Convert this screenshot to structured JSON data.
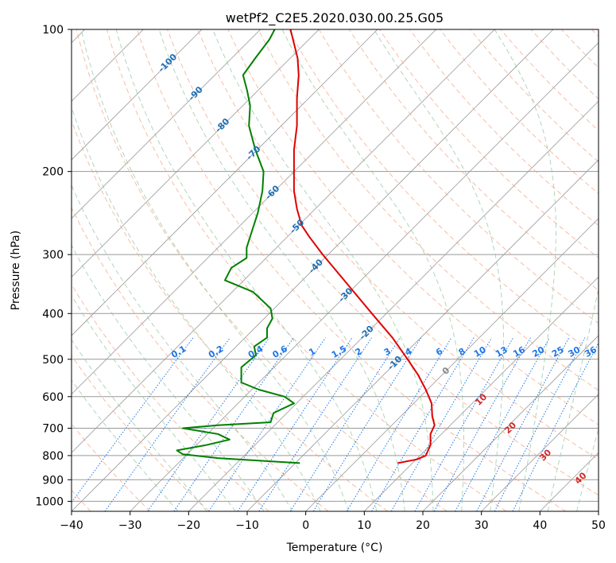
{
  "chart_data": {
    "type": "line",
    "title": "wetPf2_C2E5.2020.030.00.25.G05",
    "xlabel": "Temperature (°C)",
    "ylabel": "Pressure (hPa)",
    "xlim": [
      -40,
      50
    ],
    "ylim_hpa": [
      1050,
      100
    ],
    "y_scale": "log",
    "grid": true,
    "x_ticks": [
      -40,
      -30,
      -20,
      -10,
      0,
      10,
      20,
      30,
      40,
      50
    ],
    "y_ticks": [
      100,
      200,
      300,
      400,
      500,
      600,
      700,
      800,
      900,
      1000
    ],
    "colors": {
      "temperature": "#e00000",
      "dewpoint": "#008000",
      "isotherm": "#999999",
      "isobar": "#999999",
      "dry_adiabat": "#f4a582",
      "moist_adiabat": "#92c5a0",
      "mixing_ratio": "#1f77e8",
      "label_blue": "#1f6fb4",
      "label_red": "#d62728",
      "label_gray": "#888888"
    },
    "series": [
      {
        "name": "",
        "key": "temperature",
        "points": [
          {
            "p": 830,
            "t": 15.7
          },
          {
            "p": 815,
            "t": 19.0
          },
          {
            "p": 800,
            "t": 20.5
          },
          {
            "p": 760,
            "t": 21.3
          },
          {
            "p": 720,
            "t": 21.3
          },
          {
            "p": 690,
            "t": 22.0
          },
          {
            "p": 660,
            "t": 21.6
          },
          {
            "p": 620,
            "t": 21.5
          },
          {
            "p": 580,
            "t": 20.5
          },
          {
            "p": 540,
            "t": 19.2
          },
          {
            "p": 500,
            "t": 17.4
          },
          {
            "p": 450,
            "t": 14.8
          },
          {
            "p": 400,
            "t": 11.3
          },
          {
            "p": 350,
            "t": 7.4
          },
          {
            "p": 300,
            "t": 2.9
          },
          {
            "p": 275,
            "t": 0.6
          },
          {
            "p": 260,
            "t": -0.7
          },
          {
            "p": 240,
            "t": -1.5
          },
          {
            "p": 220,
            "t": -2.0
          },
          {
            "p": 200,
            "t": -2.0
          },
          {
            "p": 180,
            "t": -2.0
          },
          {
            "p": 160,
            "t": -1.5
          },
          {
            "p": 140,
            "t": -1.5
          },
          {
            "p": 125,
            "t": -1.2
          },
          {
            "p": 115,
            "t": -1.4
          },
          {
            "p": 100,
            "t": -2.6
          }
        ]
      },
      {
        "name": "",
        "key": "dewpoint",
        "points": [
          {
            "p": 830,
            "t": -1.0
          },
          {
            "p": 820,
            "t": -8.0
          },
          {
            "p": 810,
            "t": -15.0
          },
          {
            "p": 795,
            "t": -21.0
          },
          {
            "p": 780,
            "t": -22.0
          },
          {
            "p": 760,
            "t": -17.0
          },
          {
            "p": 740,
            "t": -13.0
          },
          {
            "p": 720,
            "t": -15.0
          },
          {
            "p": 700,
            "t": -21.0
          },
          {
            "p": 690,
            "t": -15.0
          },
          {
            "p": 680,
            "t": -6.0
          },
          {
            "p": 650,
            "t": -5.5
          },
          {
            "p": 620,
            "t": -2.0
          },
          {
            "p": 600,
            "t": -3.6
          },
          {
            "p": 580,
            "t": -8.0
          },
          {
            "p": 560,
            "t": -11.0
          },
          {
            "p": 520,
            "t": -11.0
          },
          {
            "p": 490,
            "t": -8.5
          },
          {
            "p": 470,
            "t": -8.8
          },
          {
            "p": 450,
            "t": -6.6
          },
          {
            "p": 430,
            "t": -6.6
          },
          {
            "p": 410,
            "t": -5.7
          },
          {
            "p": 390,
            "t": -6.0
          },
          {
            "p": 360,
            "t": -9.0
          },
          {
            "p": 340,
            "t": -13.8
          },
          {
            "p": 320,
            "t": -12.7
          },
          {
            "p": 305,
            "t": -10.1
          },
          {
            "p": 290,
            "t": -10.1
          },
          {
            "p": 270,
            "t": -9.3
          },
          {
            "p": 245,
            "t": -8.2
          },
          {
            "p": 220,
            "t": -7.4
          },
          {
            "p": 200,
            "t": -7.2
          },
          {
            "p": 180,
            "t": -8.6
          },
          {
            "p": 160,
            "t": -9.7
          },
          {
            "p": 145,
            "t": -9.5
          },
          {
            "p": 135,
            "t": -10.0
          },
          {
            "p": 125,
            "t": -10.7
          },
          {
            "p": 115,
            "t": -8.6
          },
          {
            "p": 105,
            "t": -6.2
          },
          {
            "p": 100,
            "t": -5.3
          }
        ]
      }
    ],
    "mixing_ratio_labels": [
      "0.1",
      "0.2",
      "0.4",
      "0.6",
      "1",
      "1.5",
      "2",
      "3",
      "4",
      "6",
      "8",
      "10",
      "13",
      "16",
      "20",
      "25",
      "30",
      "36"
    ],
    "moist_adiabat_labels": [
      "-100",
      "-90",
      "-80",
      "-70",
      "-60",
      "-50",
      "-40",
      "-30",
      "-20",
      "-10"
    ],
    "dry_adiabat_labels": [
      "0",
      "10",
      "20",
      "30",
      "40"
    ]
  }
}
